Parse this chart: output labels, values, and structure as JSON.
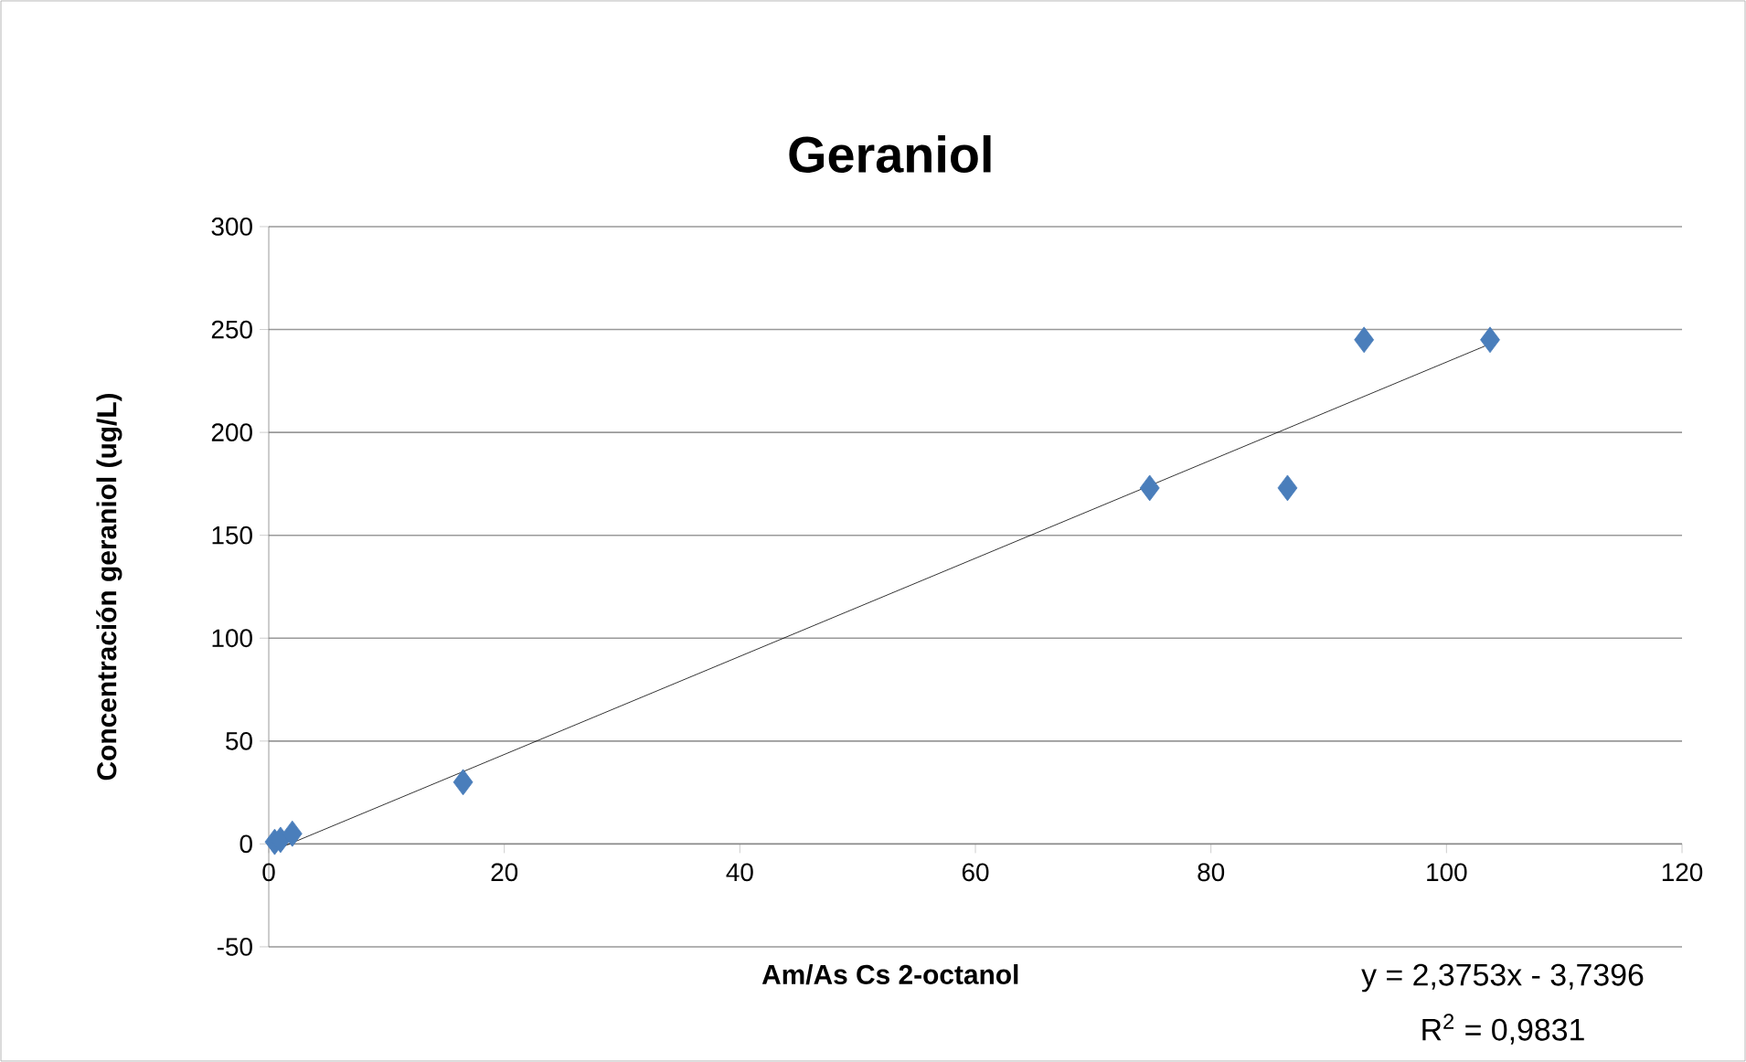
{
  "chart_data": {
    "type": "scatter",
    "title": "Geraniol",
    "xlabel": "Am/As Cs 2-octanol",
    "ylabel": "Concentración geraniol (ug/L)",
    "xlim": [
      0,
      120
    ],
    "xticks": [
      0,
      20,
      40,
      60,
      80,
      100,
      120
    ],
    "ylim": [
      -50,
      300
    ],
    "yticks": [
      -50,
      0,
      50,
      100,
      150,
      200,
      250,
      300
    ],
    "grid": "y",
    "marker": "diamond",
    "series": [
      {
        "color": "#4a7ebb",
        "x": [
          0.5,
          1,
          2,
          16.5,
          74.8,
          86.5,
          93,
          103.7
        ],
        "values": [
          1,
          2,
          5,
          30,
          173,
          173,
          245,
          245
        ]
      },
      {
        "type": "line",
        "marker": "none",
        "color": "#000000",
        "x": [
          0.5,
          103.7
        ],
        "values": [
          -3,
          243
        ]
      }
    ],
    "annotations": [
      "y = 2,3753x - 3,7396",
      "R$^{2}$ = 0,9831"
    ]
  }
}
